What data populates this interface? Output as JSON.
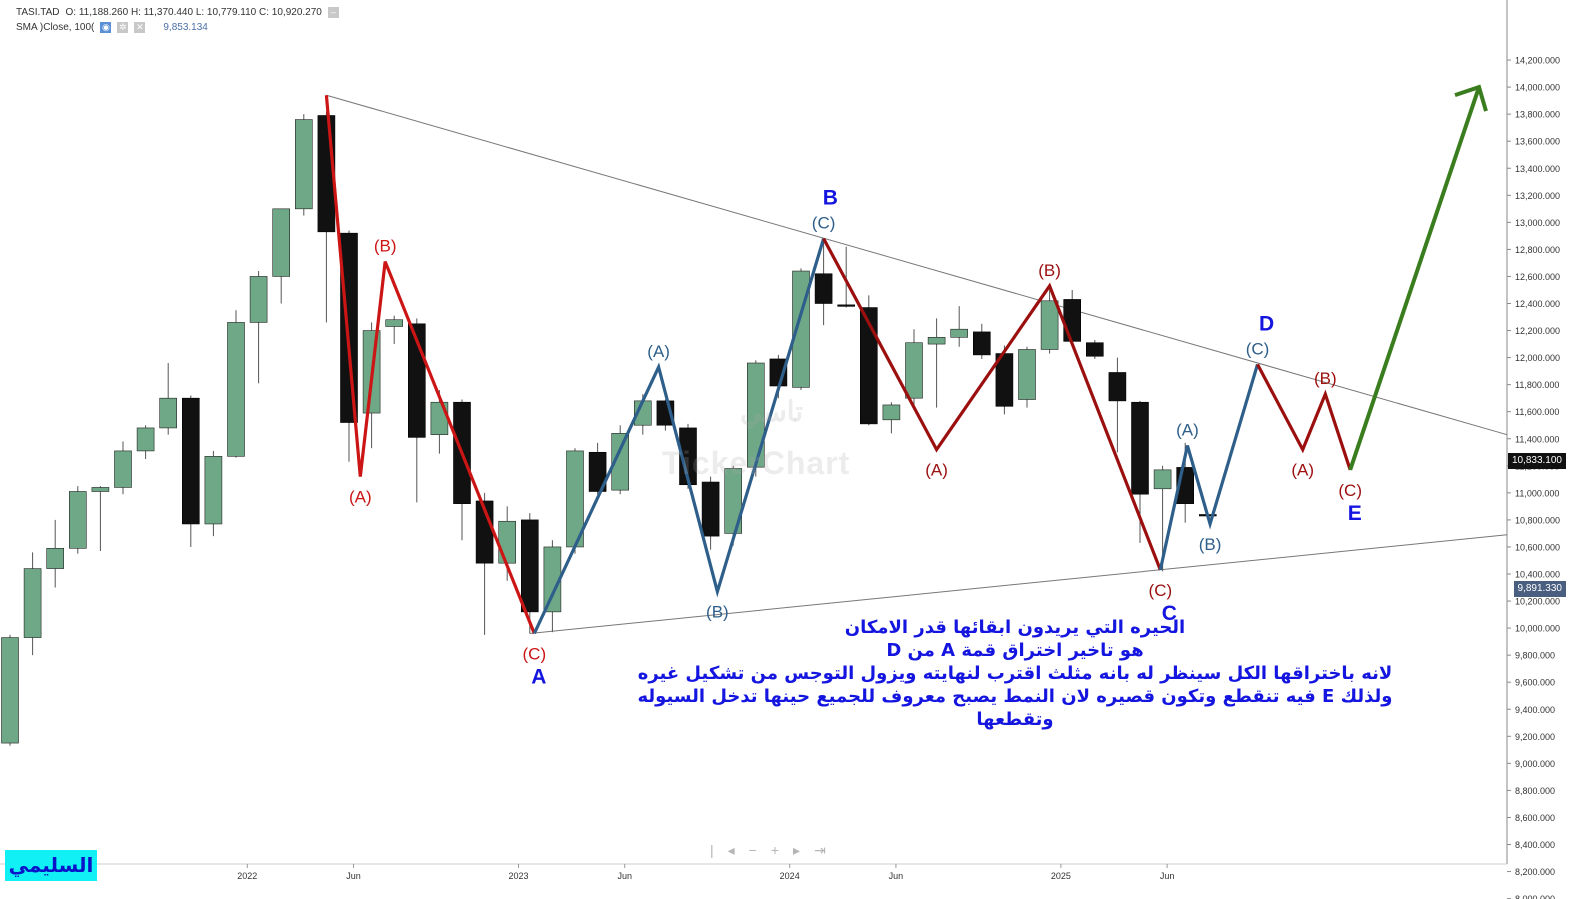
{
  "header": {
    "symbol": "TASI.TAD",
    "ohlc": "O: 11,188.260  H: 11,370.440  L: 10,779.110  C: 10,920.270",
    "sma_label": "SMA  )Close, 100(",
    "sma_value": "9,853.134"
  },
  "price_tags": {
    "last": "10,833.100",
    "sma": "9,891.330"
  },
  "watermark": {
    "latin": "TickerChart",
    "arabic": "تاسي"
  },
  "branding": "السليمي",
  "note_lines": [
    "الحيره التي يريدون ابقائها قدر الامكان",
    "هو تاخير اختراق قمة A من D",
    "لانه باختراقها الكل سينظر له بانه مثلث اقترب لنهايته ويزول التوجس من تشكيل غيره",
    "ولذلك E فيه تنقطع وتكون قصيره لان النمط يصبح معروف للجميع حينها تدخل السيوله وتقطعها"
  ],
  "nav_icons": [
    "pipe-icon",
    "left-arrow-icon",
    "minus-icon",
    "plus-icon",
    "right-arrow-icon",
    "end-icon"
  ],
  "colors": {
    "up": "#6fa887",
    "down": "#111111",
    "red_wave": "#cc1515",
    "dark_red_wave": "#9b0f0f",
    "blue_wave": "#2e5f8a",
    "green_arrow": "#3a7d1e",
    "major_label": "#1515e0"
  },
  "chart_data": {
    "type": "candlestick",
    "interval": "monthly",
    "y_axis": {
      "min": 8000,
      "max": 14200,
      "step": 200,
      "position": "right"
    },
    "x_ticks": [
      "2022",
      "Jun",
      "2023",
      "Jun",
      "2024",
      "Jun",
      "2025",
      "Jun"
    ],
    "candles": [
      {
        "o": 9150,
        "h": 9950,
        "l": 9130,
        "c": 9930
      },
      {
        "o": 9930,
        "h": 10560,
        "l": 9800,
        "c": 10440
      },
      {
        "o": 10440,
        "h": 10800,
        "l": 10300,
        "c": 10590
      },
      {
        "o": 10590,
        "h": 11050,
        "l": 10550,
        "c": 11010
      },
      {
        "o": 11010,
        "h": 11050,
        "l": 10570,
        "c": 11040
      },
      {
        "o": 11040,
        "h": 11380,
        "l": 10990,
        "c": 11310
      },
      {
        "o": 11310,
        "h": 11500,
        "l": 11250,
        "c": 11480
      },
      {
        "o": 11480,
        "h": 11960,
        "l": 11430,
        "c": 11700
      },
      {
        "o": 11700,
        "h": 11720,
        "l": 10600,
        "c": 10770
      },
      {
        "o": 10770,
        "h": 11310,
        "l": 10680,
        "c": 11270
      },
      {
        "o": 11270,
        "h": 12350,
        "l": 11260,
        "c": 12260
      },
      {
        "o": 12260,
        "h": 12640,
        "l": 11810,
        "c": 12600
      },
      {
        "o": 12600,
        "h": 13100,
        "l": 12400,
        "c": 13100
      },
      {
        "o": 13100,
        "h": 13800,
        "l": 13050,
        "c": 13760
      },
      {
        "o": 13790,
        "h": 13820,
        "l": 12260,
        "c": 12930
      },
      {
        "o": 12920,
        "h": 12940,
        "l": 11230,
        "c": 11520
      },
      {
        "o": 11590,
        "h": 12260,
        "l": 11330,
        "c": 12200
      },
      {
        "o": 12230,
        "h": 12310,
        "l": 12100,
        "c": 12280
      },
      {
        "o": 12250,
        "h": 12290,
        "l": 10930,
        "c": 11410
      },
      {
        "o": 11430,
        "h": 11760,
        "l": 11290,
        "c": 11670
      },
      {
        "o": 11670,
        "h": 11690,
        "l": 10650,
        "c": 10920
      },
      {
        "o": 10940,
        "h": 11000,
        "l": 9950,
        "c": 10480
      },
      {
        "o": 10480,
        "h": 10900,
        "l": 10350,
        "c": 10790
      },
      {
        "o": 10800,
        "h": 10850,
        "l": 9960,
        "c": 10120
      },
      {
        "o": 10120,
        "h": 10650,
        "l": 9970,
        "c": 10600
      },
      {
        "o": 10600,
        "h": 11330,
        "l": 10550,
        "c": 11310
      },
      {
        "o": 11300,
        "h": 11370,
        "l": 10990,
        "c": 11010
      },
      {
        "o": 11020,
        "h": 11500,
        "l": 10990,
        "c": 11440
      },
      {
        "o": 11500,
        "h": 11730,
        "l": 11430,
        "c": 11680
      },
      {
        "o": 11680,
        "h": 11690,
        "l": 11460,
        "c": 11500
      },
      {
        "o": 11480,
        "h": 11510,
        "l": 11030,
        "c": 11060
      },
      {
        "o": 11080,
        "h": 11120,
        "l": 10580,
        "c": 10680
      },
      {
        "o": 10700,
        "h": 11200,
        "l": 10610,
        "c": 11180
      },
      {
        "o": 11190,
        "h": 11980,
        "l": 11120,
        "c": 11960
      },
      {
        "o": 11990,
        "h": 12020,
        "l": 11700,
        "c": 11790
      },
      {
        "o": 11780,
        "h": 12660,
        "l": 11760,
        "c": 12640
      },
      {
        "o": 12620,
        "h": 12880,
        "l": 12240,
        "c": 12400
      },
      {
        "o": 12390,
        "h": 12820,
        "l": 12370,
        "c": 12380
      },
      {
        "o": 12370,
        "h": 12460,
        "l": 11500,
        "c": 11510
      },
      {
        "o": 11540,
        "h": 11670,
        "l": 11440,
        "c": 11650
      },
      {
        "o": 11700,
        "h": 12210,
        "l": 11640,
        "c": 12110
      },
      {
        "o": 12100,
        "h": 12290,
        "l": 11630,
        "c": 12150
      },
      {
        "o": 12150,
        "h": 12380,
        "l": 12080,
        "c": 12210
      },
      {
        "o": 12190,
        "h": 12250,
        "l": 11990,
        "c": 12020
      },
      {
        "o": 12030,
        "h": 12090,
        "l": 11580,
        "c": 11640
      },
      {
        "o": 11690,
        "h": 12080,
        "l": 11630,
        "c": 12060
      },
      {
        "o": 12060,
        "h": 12500,
        "l": 12030,
        "c": 12420
      },
      {
        "o": 12430,
        "h": 12500,
        "l": 12110,
        "c": 12120
      },
      {
        "o": 12110,
        "h": 12130,
        "l": 11990,
        "c": 12010
      },
      {
        "o": 11890,
        "h": 12000,
        "l": 11300,
        "c": 11680
      },
      {
        "o": 11670,
        "h": 11680,
        "l": 10630,
        "c": 10990
      },
      {
        "o": 11030,
        "h": 11200,
        "l": 10420,
        "c": 11170
      },
      {
        "o": 11188,
        "h": 11370,
        "l": 10779,
        "c": 10920
      },
      {
        "o": 10840,
        "h": 10850,
        "l": 10800,
        "c": 10833
      }
    ],
    "sma": {
      "label": "SMA )Close, 100(",
      "value": 9853.134
    },
    "trendlines": [
      {
        "from": [
          14,
          13940
        ],
        "to": [
          "right-edge",
          11430
        ]
      },
      {
        "from": [
          23,
          9960
        ],
        "to": [
          "right-edge",
          10690
        ]
      }
    ],
    "waves": [
      {
        "name": "red",
        "points": [
          [
            14,
            13940
          ],
          [
            15.5,
            11120
          ],
          [
            16.6,
            12710
          ],
          [
            23.2,
            9960
          ]
        ],
        "labels": [
          [
            "(A)",
            15.5,
            11120,
            "below"
          ],
          [
            "(B)",
            16.6,
            12710,
            "above"
          ],
          [
            "(C)",
            23.2,
            9960,
            "below"
          ]
        ]
      },
      {
        "name": "blue",
        "points": [
          [
            23.2,
            9960
          ],
          [
            28.7,
            11930
          ],
          [
            31.3,
            10270
          ],
          [
            36,
            12880
          ]
        ],
        "labels": [
          [
            "(A)",
            28.7,
            11930,
            "above"
          ],
          [
            "(B)",
            31.3,
            10270,
            "below"
          ],
          [
            "(C)",
            36,
            12880,
            "above"
          ]
        ]
      },
      {
        "name": "dark-red",
        "points": [
          [
            36,
            12880
          ],
          [
            41,
            11320
          ],
          [
            46,
            12530
          ],
          [
            50.9,
            10430
          ]
        ],
        "labels": [
          [
            "(A)",
            41,
            11320,
            "below"
          ],
          [
            "(B)",
            46,
            12530,
            "above"
          ],
          [
            "(C)",
            50.9,
            10430,
            "below"
          ]
        ]
      },
      {
        "name": "blue",
        "points": [
          [
            50.9,
            10430
          ],
          [
            52.1,
            11350
          ],
          [
            53.1,
            10770
          ],
          [
            55.2,
            11950
          ]
        ],
        "labels": [
          [
            "(A)",
            52.1,
            11350,
            "above"
          ],
          [
            "(B)",
            53.1,
            10770,
            "below"
          ],
          [
            "(C)",
            55.2,
            11950,
            "above"
          ]
        ]
      },
      {
        "name": "dark-red",
        "points": [
          [
            55.2,
            11950
          ],
          [
            57.2,
            11320
          ],
          [
            58.2,
            11730
          ],
          [
            59.3,
            11170
          ]
        ],
        "labels": [
          [
            "(A)",
            57.2,
            11320,
            "below"
          ],
          [
            "(B)",
            58.2,
            11730,
            "above"
          ],
          [
            "(C)",
            59.3,
            11170,
            "below"
          ]
        ]
      },
      {
        "name": "green-arrow",
        "points": [
          [
            59.3,
            11170
          ],
          [
            65,
            14000
          ]
        ],
        "labels": []
      }
    ],
    "major_labels": [
      {
        "text": "A",
        "at": [
          23.4,
          9960
        ],
        "place": "below"
      },
      {
        "text": "B",
        "at": [
          36.3,
          12880
        ],
        "place": "above"
      },
      {
        "text": "C",
        "at": [
          51.3,
          10430
        ],
        "place": "below"
      },
      {
        "text": "D",
        "at": [
          55.6,
          11950
        ],
        "place": "above"
      },
      {
        "text": "E",
        "at": [
          59.5,
          11170
        ],
        "place": "below"
      }
    ]
  }
}
